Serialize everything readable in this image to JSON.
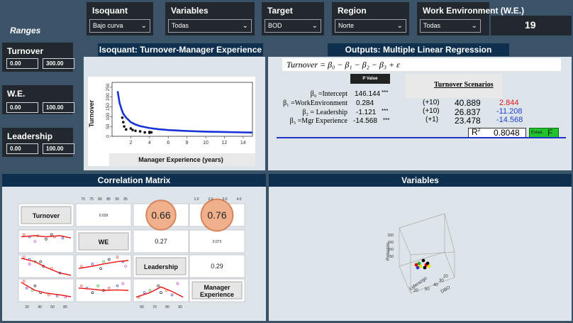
{
  "ranges_title": "Ranges",
  "filters": [
    {
      "label": "Isoquant",
      "value": "Bajo curva"
    },
    {
      "label": "Variables",
      "value": "Todas"
    },
    {
      "label": "Target",
      "value": "BOD"
    },
    {
      "label": "Region",
      "value": "Norte"
    },
    {
      "label": "Work Environment (W.E.)",
      "value": "Todas"
    }
  ],
  "top_value": "19",
  "sidebar": [
    {
      "label": "Turnover",
      "min": "0.00",
      "max": "300.00"
    },
    {
      "label": "W.E.",
      "min": "0.00",
      "max": "100.00"
    },
    {
      "label": "Leadership",
      "min": "0.00",
      "max": "100.00"
    }
  ],
  "isoquant": {
    "title": "Isoquant: Turnover-Manager Experience",
    "xlabel": "Manager Experience (years)",
    "ylabel": "Turnover",
    "xticks": [
      "2",
      "4",
      "6",
      "8",
      "10",
      "12",
      "14"
    ],
    "yticks": [
      "0",
      "50",
      "100",
      "150",
      "200",
      "250"
    ]
  },
  "outputs": {
    "title": "Outputs: Multiple Linear Regression",
    "formula": "Turnover = β₀ − β₁ − β₂ − β₃ + ε",
    "pvalue_btn": "P Value",
    "scenarios_label": "Turnover Scenarios",
    "rows": [
      {
        "name": "β₀ =Intercept",
        "coef": "146.144",
        "sig": "***",
        "scen": "",
        "pred": "",
        "delta": ""
      },
      {
        "name": "β₁ =WorkEnvironment",
        "coef": "0.284",
        "sig": "",
        "scen": "(+10)",
        "pred": "40.889",
        "delta": "2.844"
      },
      {
        "name": "β₂ = Leadership",
        "coef": "-1.121",
        "sig": "***",
        "scen": "(+10)",
        "pred": "26.837",
        "delta": "-11.208"
      },
      {
        "name": "β₃ =Mgr Experience",
        "coef": "-14.568",
        "sig": "***",
        "scen": "(+1)",
        "pred": "23.478",
        "delta": "-14.568"
      }
    ],
    "r2_label": "R",
    "r2_sup": "2",
    "r2_value": "0.8048",
    "estad_label": "Estad.",
    "estad_value": "F"
  },
  "correlation": {
    "title": "Correlation Matrix",
    "labels": [
      "Turnover",
      "WE",
      "Leadership",
      "Manager\nExperience"
    ],
    "values": {
      "t_we": "0.039",
      "t_lead": "0.66",
      "t_mgr": "0.76",
      "we_lead": "0.27",
      "we_mgr": "0.073",
      "lead_mgr": "0.29"
    },
    "top_ticks_we": [
      "70",
      "75",
      "80",
      "85",
      "90",
      "95"
    ],
    "top_ticks_mgr": [
      "1.0",
      "2.0",
      "3.0",
      "4.0"
    ],
    "bottom_ticks_t": [
      "20",
      "40",
      "60",
      "80"
    ],
    "bottom_ticks_lead": [
      "60",
      "70",
      "80",
      "90"
    ]
  },
  "variables": {
    "title": "Variables",
    "axis_labels": [
      "Rotación",
      "Liderazgo",
      "DBO"
    ],
    "ticks": [
      "20",
      "50",
      "100",
      "150",
      "200",
      "250",
      "300",
      "350",
      "50",
      "40",
      "30",
      "20"
    ]
  },
  "chart_data": {
    "type": "scatter",
    "title": "Isoquant: Turnover-Manager Experience",
    "xlabel": "Manager Experience (years)",
    "ylabel": "Turnover",
    "x": [
      1.1,
      1.2,
      1.3,
      1.5,
      2,
      2.2,
      2.5,
      3,
      3.5,
      4,
      4,
      4.2
    ],
    "y": [
      95,
      72,
      50,
      35,
      40,
      32,
      28,
      25,
      20,
      22,
      18,
      20
    ],
    "xlim": [
      0,
      15
    ],
    "ylim": [
      0,
      275
    ],
    "curve_x": [
      0.6,
      0.8,
      1,
      1.2,
      1.5,
      2,
      2.5,
      3,
      4,
      5,
      6,
      8,
      10,
      12,
      14,
      15
    ],
    "curve_y": [
      230,
      170,
      140,
      115,
      95,
      72,
      60,
      52,
      42,
      36,
      32,
      27,
      24,
      22,
      20,
      19
    ]
  }
}
